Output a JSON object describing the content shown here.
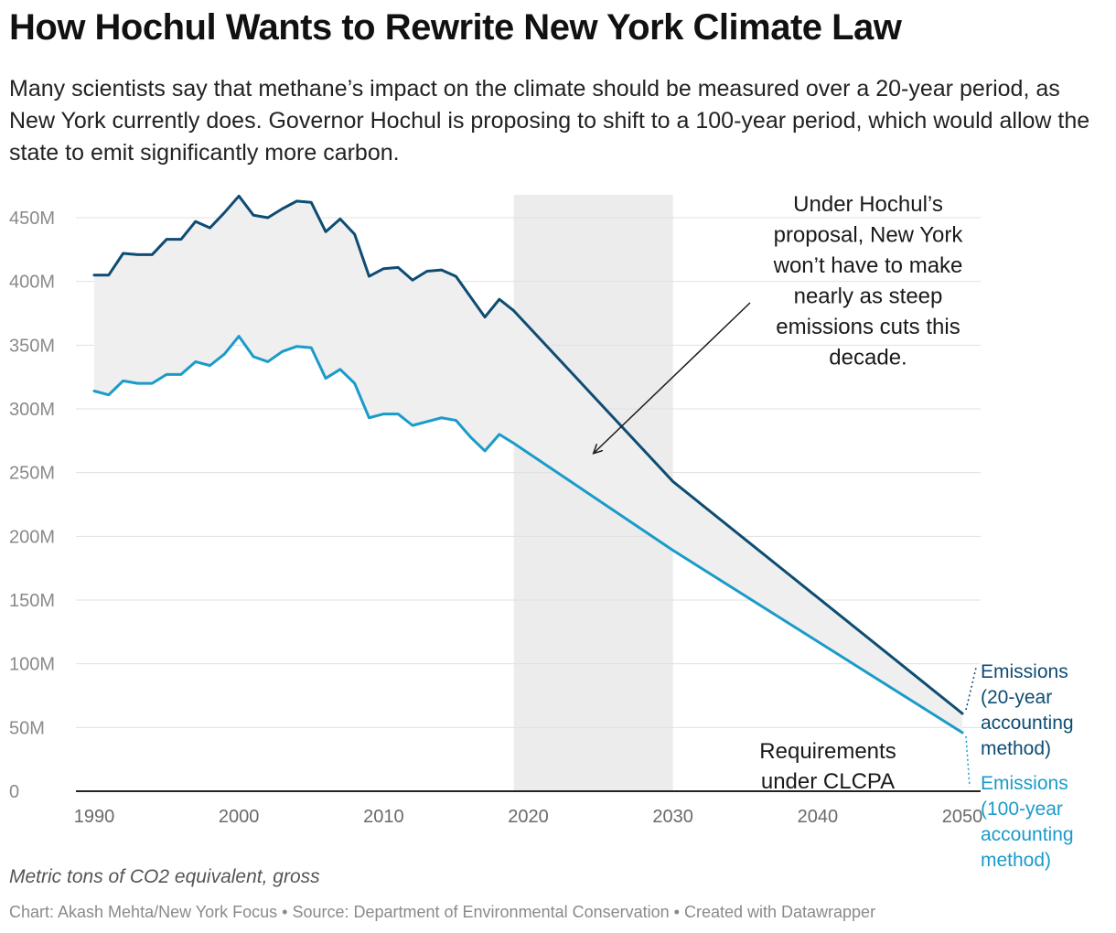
{
  "title": "How Hochul Wants to Rewrite New York Climate Law",
  "subtitle": "Many scientists say that methane’s impact on the climate should be measured over a 20-year period, as New York currently does. Governor Hochul is proposing to shift to a 100-year period, which would allow the state to emit significantly more carbon.",
  "footer": {
    "note": "Metric tons of CO2 equivalent, gross",
    "credit": "Chart: Akash Mehta/New York Focus • Source: Department of Environmental Conservation • Created with Datawrapper"
  },
  "colors": {
    "series_20yr": "#0e4c73",
    "series_100yr": "#1a9bc9",
    "band_fill": "#efefef",
    "highlight": "#ececec",
    "grid": "#e0e0e0"
  },
  "chart_data": {
    "type": "line",
    "xlim": [
      1990,
      2050
    ],
    "ylim": [
      0,
      450
    ],
    "y_ticks": [
      {
        "value": 0,
        "label": "0"
      },
      {
        "value": 50,
        "label": "50M"
      },
      {
        "value": 100,
        "label": "100M"
      },
      {
        "value": 150,
        "label": "150M"
      },
      {
        "value": 200,
        "label": "200M"
      },
      {
        "value": 250,
        "label": "250M"
      },
      {
        "value": 300,
        "label": "300M"
      },
      {
        "value": 350,
        "label": "350M"
      },
      {
        "value": 400,
        "label": "400M"
      },
      {
        "value": 450,
        "label": "450M"
      }
    ],
    "x_ticks": [
      {
        "value": 1990,
        "label": "1990"
      },
      {
        "value": 2000,
        "label": "2000"
      },
      {
        "value": 2010,
        "label": "2010"
      },
      {
        "value": 2020,
        "label": "2020"
      },
      {
        "value": 2030,
        "label": "2030"
      },
      {
        "value": 2040,
        "label": "2040"
      },
      {
        "value": 2050,
        "label": "2050"
      }
    ],
    "highlight_range": [
      2019,
      2030
    ],
    "series": [
      {
        "name": "Emissions (20-year accounting method)",
        "label_lines": [
          "Emissions",
          "(20-year",
          "accounting",
          "method)"
        ],
        "x": [
          1990,
          1991,
          1992,
          1993,
          1994,
          1995,
          1996,
          1997,
          1998,
          1999,
          2000,
          2001,
          2002,
          2003,
          2004,
          2005,
          2006,
          2007,
          2008,
          2009,
          2010,
          2011,
          2012,
          2013,
          2014,
          2015,
          2016,
          2017,
          2018,
          2019,
          2030,
          2050
        ],
        "y": [
          405,
          405,
          422,
          421,
          421,
          433,
          433,
          447,
          442,
          454,
          467,
          452,
          450,
          457,
          463,
          462,
          439,
          449,
          437,
          404,
          410,
          411,
          401,
          408,
          409,
          404,
          388,
          372,
          386,
          377,
          243,
          61
        ]
      },
      {
        "name": "Emissions (100-year accounting method)",
        "label_lines": [
          "Emissions",
          "(100-year",
          "accounting",
          "method)"
        ],
        "x": [
          1990,
          1991,
          1992,
          1993,
          1994,
          1995,
          1996,
          1997,
          1998,
          1999,
          2000,
          2001,
          2002,
          2003,
          2004,
          2005,
          2006,
          2007,
          2008,
          2009,
          2010,
          2011,
          2012,
          2013,
          2014,
          2015,
          2016,
          2017,
          2018,
          2019,
          2030,
          2050
        ],
        "y": [
          314,
          311,
          322,
          320,
          320,
          327,
          327,
          337,
          334,
          343,
          357,
          341,
          337,
          345,
          349,
          348,
          324,
          331,
          320,
          293,
          296,
          296,
          287,
          290,
          293,
          291,
          278,
          267,
          280,
          273,
          189,
          46
        ]
      }
    ],
    "annotations": [
      {
        "id": "hochul",
        "lines": [
          "Under Hochul’s",
          "proposal, New York",
          "won’t have to make",
          "nearly as steep",
          "emissions cuts this",
          "decade."
        ],
        "arrow_to": [
          2024.5,
          265
        ]
      },
      {
        "id": "clcpa",
        "lines": [
          "Requirements",
          "under CLCPA"
        ]
      }
    ]
  }
}
